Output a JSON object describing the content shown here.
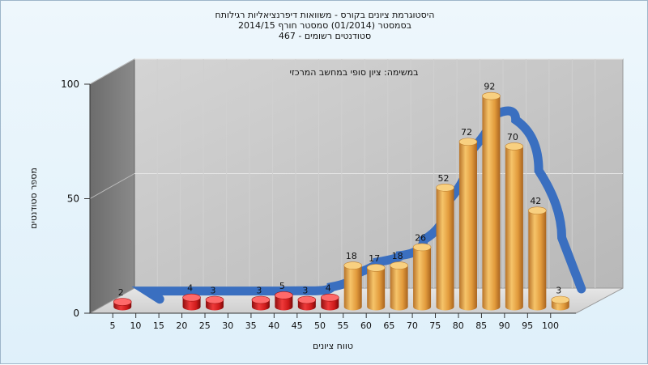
{
  "chart_data": {
    "type": "bar",
    "title_lines": [
      "היסטוגרמת ציונים בקורס - משוואות דיפרנציאליות רגילותח",
      "בסמסטר  (01/2014)  סמסטר חורף 2014/15",
      "467 - סטודנטים רשומים"
    ],
    "annotation": "במשימה: ציון סופי במחשב המרכזי",
    "xlabel": "טווח ציונים",
    "ylabel": "מספר סטודנטים",
    "categories": [
      "5",
      "10",
      "15",
      "20",
      "25",
      "30",
      "35",
      "40",
      "45",
      "50",
      "55",
      "60",
      "65",
      "70",
      "75",
      "80",
      "85",
      "90",
      "95",
      "100"
    ],
    "values": [
      2,
      null,
      null,
      4,
      3,
      null,
      3,
      5,
      3,
      4,
      18,
      17,
      18,
      26,
      52,
      72,
      92,
      70,
      42,
      3
    ],
    "failing_threshold": 55,
    "y_ticks": [
      0,
      50,
      100
    ],
    "ylim": [
      0,
      100
    ],
    "colors": {
      "failing_bar": "#d42020",
      "passing_bar": "#e7a545",
      "curve": "#3a6fc0",
      "wall": "#c9c9c9",
      "side_wall": "#7a7a7a",
      "floor": "#d9d9d9"
    }
  }
}
